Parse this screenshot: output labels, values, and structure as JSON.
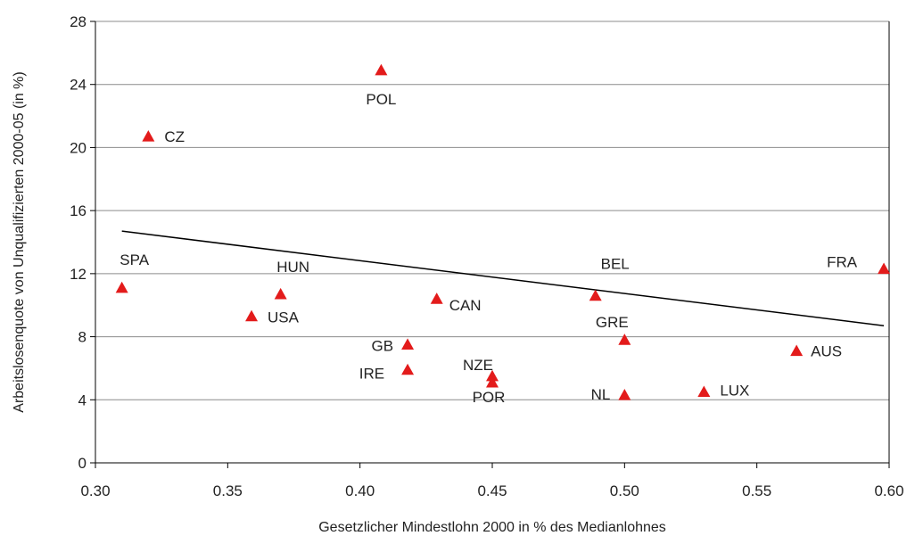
{
  "chart_data": {
    "type": "scatter",
    "title": "",
    "xlabel": "Gesetzlicher Mindestlohn 2000 in % des Medianlohnes",
    "ylabel": "Arbeitslosenquote von Unqualifizierten 2000-05 (in %)",
    "xlim": [
      0.3,
      0.6
    ],
    "ylim": [
      0,
      28
    ],
    "x_ticks": [
      "0.30",
      "0.35",
      "0.40",
      "0.45",
      "0.50",
      "0.55",
      "0.60"
    ],
    "y_ticks": [
      "0",
      "4",
      "8",
      "12",
      "16",
      "20",
      "24",
      "28"
    ],
    "grid": "horizontal",
    "marker": "triangle",
    "marker_color": "#e31b1b",
    "trend_color": "#000000",
    "points": [
      {
        "label": "POL",
        "x": 0.408,
        "y": 24.9
      },
      {
        "label": "CZ",
        "x": 0.32,
        "y": 20.7
      },
      {
        "label": "SPA",
        "x": 0.31,
        "y": 11.1
      },
      {
        "label": "HUN",
        "x": 0.37,
        "y": 10.7
      },
      {
        "label": "USA",
        "x": 0.359,
        "y": 9.3
      },
      {
        "label": "CAN",
        "x": 0.429,
        "y": 10.4
      },
      {
        "label": "BEL",
        "x": 0.489,
        "y": 10.6
      },
      {
        "label": "FRA",
        "x": 0.598,
        "y": 12.3
      },
      {
        "label": "GRE",
        "x": 0.5,
        "y": 7.8
      },
      {
        "label": "GB",
        "x": 0.418,
        "y": 7.5
      },
      {
        "label": "AUS",
        "x": 0.565,
        "y": 7.1
      },
      {
        "label": "IRE",
        "x": 0.418,
        "y": 5.9
      },
      {
        "label": "NZE",
        "x": 0.45,
        "y": 5.5
      },
      {
        "label": "POR",
        "x": 0.45,
        "y": 5.1
      },
      {
        "label": "NL",
        "x": 0.5,
        "y": 4.3
      },
      {
        "label": "LUX",
        "x": 0.53,
        "y": 4.5
      }
    ],
    "trendline": {
      "x": [
        0.31,
        0.598
      ],
      "y": [
        14.7,
        8.7
      ]
    }
  }
}
